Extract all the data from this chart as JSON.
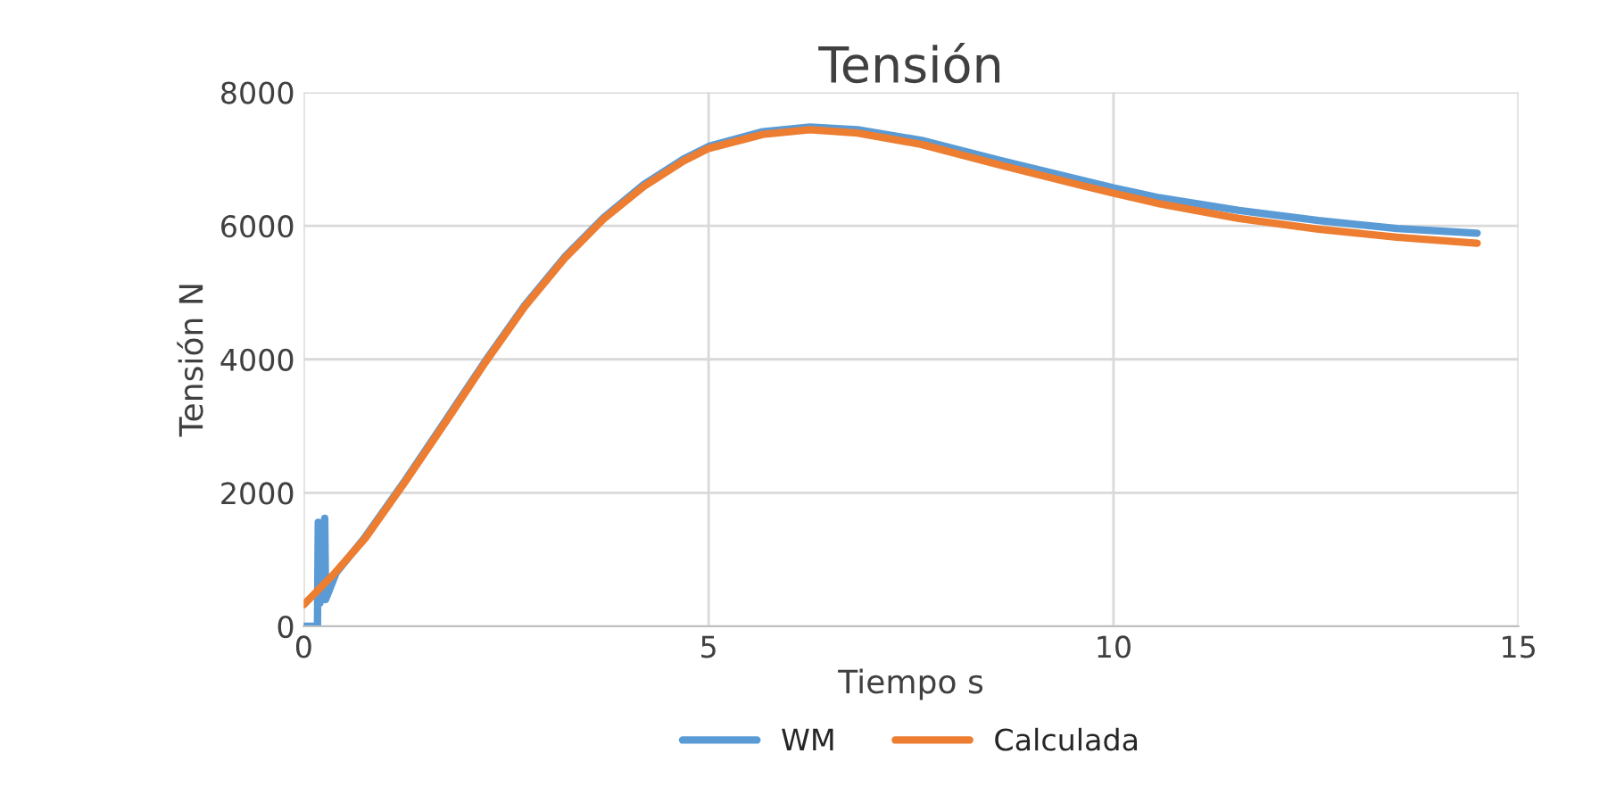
{
  "chart_data": {
    "type": "line",
    "title": "Tensión",
    "xlabel": "Tiempo s",
    "ylabel": "Tensión N",
    "xlim": [
      0,
      15
    ],
    "xticks": [
      0,
      5,
      10,
      15
    ],
    "ylim": [
      0,
      8000
    ],
    "yticks": [
      0,
      2000,
      4000,
      6000,
      8000
    ],
    "grid": true,
    "legend": "bottom",
    "series": [
      {
        "name": "WM",
        "color": "#5b9bd5",
        "x": [
          0,
          0.17,
          0.18,
          0.2,
          0.26,
          0.27,
          0.4,
          0.76,
          1.25,
          1.75,
          2.24,
          2.73,
          3.22,
          3.71,
          4.2,
          4.69,
          5,
          5.67,
          6.25,
          6.84,
          7.63,
          8.6,
          9.59,
          10,
          10.57,
          11.55,
          12.53,
          13.5,
          14.49
        ],
        "values": [
          0,
          0,
          1560,
          350,
          1620,
          400,
          800,
          1340,
          2180,
          3080,
          3970,
          4810,
          5530,
          6130,
          6620,
          7000,
          7190,
          7410,
          7480,
          7440,
          7280,
          6980,
          6690,
          6570,
          6420,
          6230,
          6080,
          5960,
          5890
        ]
      },
      {
        "name": "Calculada",
        "color": "#ed7d31",
        "x": [
          0,
          0.37,
          0.76,
          1.25,
          1.75,
          2.24,
          2.73,
          3.22,
          3.71,
          4.2,
          4.69,
          5,
          5.67,
          6.25,
          6.84,
          7.63,
          8.6,
          9.59,
          10,
          10.57,
          11.55,
          12.53,
          13.5,
          14.49
        ],
        "values": [
          324,
          780,
          1320,
          2160,
          3055,
          3950,
          4790,
          5510,
          6110,
          6590,
          6970,
          7160,
          7370,
          7440,
          7390,
          7220,
          6910,
          6610,
          6490,
          6330,
          6110,
          5950,
          5830,
          5740
        ]
      }
    ]
  }
}
